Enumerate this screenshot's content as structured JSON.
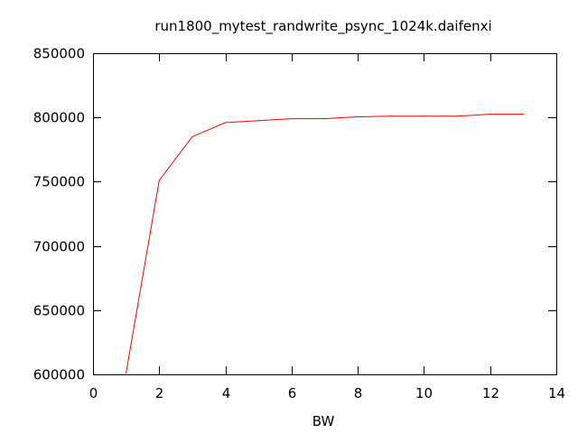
{
  "chart_data": {
    "type": "line",
    "title": "run1800_mytest_randwrite_psync_1024k.daifenxi",
    "xlabel": "BW",
    "ylabel": "",
    "xlim": [
      0,
      14
    ],
    "ylim": [
      600000,
      850000
    ],
    "xticks": [
      0,
      2,
      4,
      6,
      8,
      10,
      12,
      14
    ],
    "yticks": [
      600000,
      650000,
      700000,
      750000,
      800000,
      850000
    ],
    "xtick_labels": [
      "0",
      "2",
      "4",
      "6",
      "8",
      "10",
      "12",
      "14"
    ],
    "ytick_labels": [
      "600000",
      "650000",
      "700000",
      "750000",
      "800000",
      "850000"
    ],
    "grid": false,
    "legend": "none",
    "series": [
      {
        "color": "#ff0000",
        "x": [
          1,
          2,
          3,
          4,
          5,
          6,
          7,
          8,
          9,
          10,
          11,
          12,
          13
        ],
        "y": [
          601000,
          751000,
          785000,
          796000,
          797500,
          799000,
          799000,
          800500,
          801000,
          801000,
          801000,
          802500,
          802500
        ]
      }
    ]
  }
}
